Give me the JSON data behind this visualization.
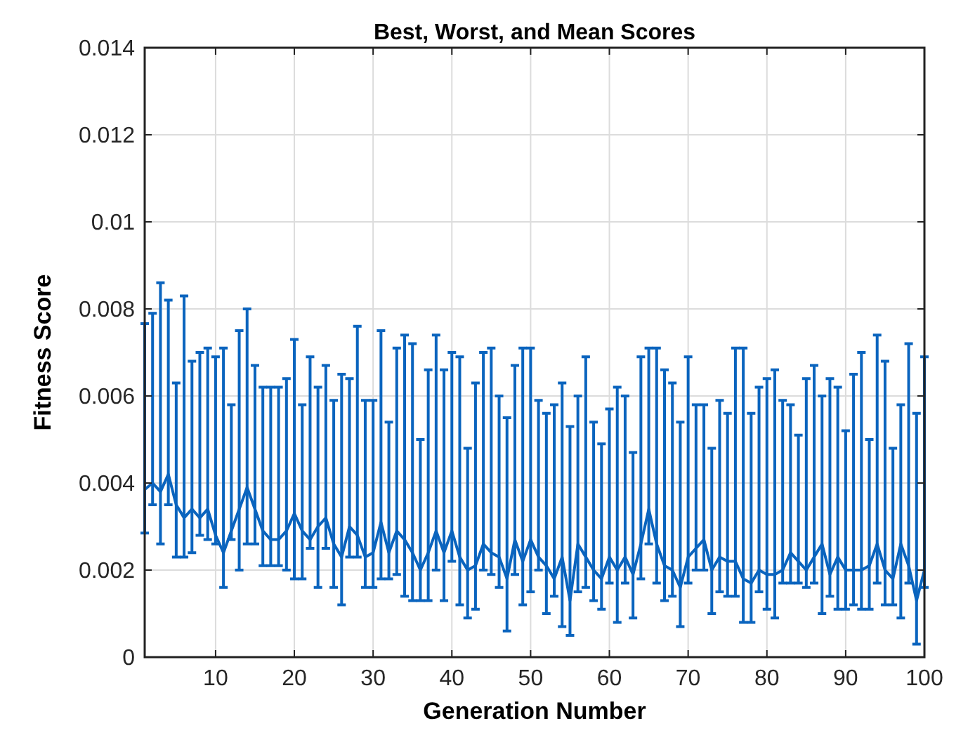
{
  "chart_data": {
    "type": "line",
    "title": "Best, Worst, and Mean Scores",
    "xlabel": "Generation Number",
    "ylabel": "Fitness Score",
    "x": [
      1,
      2,
      3,
      4,
      5,
      6,
      7,
      8,
      9,
      10,
      11,
      12,
      13,
      14,
      15,
      16,
      17,
      18,
      19,
      20,
      21,
      22,
      23,
      24,
      25,
      26,
      27,
      28,
      29,
      30,
      31,
      32,
      33,
      34,
      35,
      36,
      37,
      38,
      39,
      40,
      41,
      42,
      43,
      44,
      45,
      46,
      47,
      48,
      49,
      50,
      51,
      52,
      53,
      54,
      55,
      56,
      57,
      58,
      59,
      60,
      61,
      62,
      63,
      64,
      65,
      66,
      67,
      68,
      69,
      70,
      71,
      72,
      73,
      74,
      75,
      76,
      77,
      78,
      79,
      80,
      81,
      82,
      83,
      84,
      85,
      86,
      87,
      88,
      89,
      90,
      91,
      92,
      93,
      94,
      95,
      96,
      97,
      98,
      99,
      100
    ],
    "series": [
      {
        "color": "#0a64be",
        "values": [
          0.00385,
          0.004,
          0.0038,
          0.0042,
          0.0035,
          0.0032,
          0.0034,
          0.0032,
          0.0034,
          0.0028,
          0.0024,
          0.0029,
          0.0034,
          0.0039,
          0.0034,
          0.0029,
          0.0027,
          0.0027,
          0.0029,
          0.0033,
          0.0029,
          0.0027,
          0.003,
          0.0032,
          0.0026,
          0.0023,
          0.003,
          0.0028,
          0.0023,
          0.0024,
          0.0031,
          0.0024,
          0.0029,
          0.0027,
          0.0024,
          0.002,
          0.0024,
          0.0029,
          0.0024,
          0.0029,
          0.0023,
          0.002,
          0.0021,
          0.0026,
          0.0024,
          0.0023,
          0.0018,
          0.0027,
          0.0022,
          0.0027,
          0.0023,
          0.0021,
          0.0018,
          0.0023,
          0.0013,
          0.0026,
          0.0023,
          0.002,
          0.0018,
          0.0023,
          0.002,
          0.0023,
          0.0019,
          0.0026,
          0.0034,
          0.0026,
          0.0021,
          0.002,
          0.0016,
          0.0023,
          0.0025,
          0.0027,
          0.002,
          0.0023,
          0.0022,
          0.0022,
          0.0018,
          0.0017,
          0.002,
          0.0019,
          0.0019,
          0.002,
          0.0024,
          0.0022,
          0.002,
          0.0023,
          0.0026,
          0.0019,
          0.0023,
          0.002,
          0.002,
          0.002,
          0.0021,
          0.0026,
          0.002,
          0.0018,
          0.0026,
          0.0021,
          0.0013,
          0.002
        ],
        "errors": [
          [
            0.00285,
            0.00766
          ],
          [
            0.0035,
            0.0079
          ],
          [
            0.0026,
            0.0086
          ],
          [
            0.0035,
            0.0082
          ],
          [
            0.0023,
            0.0063
          ],
          [
            0.0023,
            0.0083
          ],
          [
            0.0024,
            0.0068
          ],
          [
            0.0028,
            0.007
          ],
          [
            0.0027,
            0.0071
          ],
          [
            0.0026,
            0.0069
          ],
          [
            0.0016,
            0.0071
          ],
          [
            0.0027,
            0.0058
          ],
          [
            0.002,
            0.0075
          ],
          [
            0.0026,
            0.008
          ],
          [
            0.0026,
            0.0067
          ],
          [
            0.0021,
            0.0062
          ],
          [
            0.0021,
            0.0062
          ],
          [
            0.0021,
            0.0062
          ],
          [
            0.002,
            0.0064
          ],
          [
            0.0018,
            0.0073
          ],
          [
            0.0018,
            0.0058
          ],
          [
            0.0025,
            0.0069
          ],
          [
            0.0016,
            0.0062
          ],
          [
            0.0025,
            0.0067
          ],
          [
            0.0016,
            0.0059
          ],
          [
            0.0012,
            0.0065
          ],
          [
            0.0023,
            0.0064
          ],
          [
            0.0023,
            0.0076
          ],
          [
            0.0016,
            0.0059
          ],
          [
            0.0016,
            0.0059
          ],
          [
            0.0018,
            0.0075
          ],
          [
            0.0018,
            0.0054
          ],
          [
            0.0019,
            0.0071
          ],
          [
            0.0014,
            0.0074
          ],
          [
            0.0013,
            0.0072
          ],
          [
            0.0013,
            0.005
          ],
          [
            0.0013,
            0.0066
          ],
          [
            0.002,
            0.0074
          ],
          [
            0.0013,
            0.0066
          ],
          [
            0.0022,
            0.007
          ],
          [
            0.0012,
            0.0069
          ],
          [
            0.0009,
            0.0048
          ],
          [
            0.0011,
            0.0063
          ],
          [
            0.002,
            0.007
          ],
          [
            0.0019,
            0.0071
          ],
          [
            0.0016,
            0.006
          ],
          [
            0.0006,
            0.0055
          ],
          [
            0.0019,
            0.0067
          ],
          [
            0.0012,
            0.0071
          ],
          [
            0.0015,
            0.0071
          ],
          [
            0.002,
            0.0059
          ],
          [
            0.001,
            0.0056
          ],
          [
            0.0014,
            0.0058
          ],
          [
            0.0007,
            0.0063
          ],
          [
            0.0005,
            0.0053
          ],
          [
            0.0015,
            0.006
          ],
          [
            0.0016,
            0.0069
          ],
          [
            0.0013,
            0.0054
          ],
          [
            0.0011,
            0.0049
          ],
          [
            0.0017,
            0.0057
          ],
          [
            0.0008,
            0.0062
          ],
          [
            0.0017,
            0.006
          ],
          [
            0.0009,
            0.0047
          ],
          [
            0.0018,
            0.0069
          ],
          [
            0.0026,
            0.0071
          ],
          [
            0.0017,
            0.0071
          ],
          [
            0.0013,
            0.0066
          ],
          [
            0.0014,
            0.0063
          ],
          [
            0.0007,
            0.0054
          ],
          [
            0.0017,
            0.0069
          ],
          [
            0.002,
            0.0058
          ],
          [
            0.002,
            0.0058
          ],
          [
            0.001,
            0.0048
          ],
          [
            0.0015,
            0.0059
          ],
          [
            0.0014,
            0.0056
          ],
          [
            0.0014,
            0.0071
          ],
          [
            0.0008,
            0.0071
          ],
          [
            0.0008,
            0.0056
          ],
          [
            0.0015,
            0.0062
          ],
          [
            0.0011,
            0.0064
          ],
          [
            0.0009,
            0.0066
          ],
          [
            0.0017,
            0.0059
          ],
          [
            0.0017,
            0.0058
          ],
          [
            0.0017,
            0.0051
          ],
          [
            0.0016,
            0.0064
          ],
          [
            0.0017,
            0.0067
          ],
          [
            0.001,
            0.006
          ],
          [
            0.0014,
            0.0064
          ],
          [
            0.0011,
            0.0062
          ],
          [
            0.0011,
            0.0052
          ],
          [
            0.0012,
            0.0065
          ],
          [
            0.0011,
            0.007
          ],
          [
            0.0011,
            0.005
          ],
          [
            0.0017,
            0.0074
          ],
          [
            0.0012,
            0.0068
          ],
          [
            0.0012,
            0.0048
          ],
          [
            0.0009,
            0.0058
          ],
          [
            0.0017,
            0.0072
          ],
          [
            0.0003,
            0.0056
          ],
          [
            0.0016,
            0.0069
          ]
        ]
      }
    ],
    "xlim": [
      1,
      100
    ],
    "xticks": [
      10,
      20,
      30,
      40,
      50,
      60,
      70,
      80,
      90,
      100
    ],
    "ylim": [
      0,
      0.014
    ],
    "yticks": [
      0,
      0.002,
      0.004,
      0.006,
      0.008,
      0.01,
      0.012,
      0.014
    ],
    "grid": true,
    "line_style": "solid",
    "marker": "none"
  }
}
